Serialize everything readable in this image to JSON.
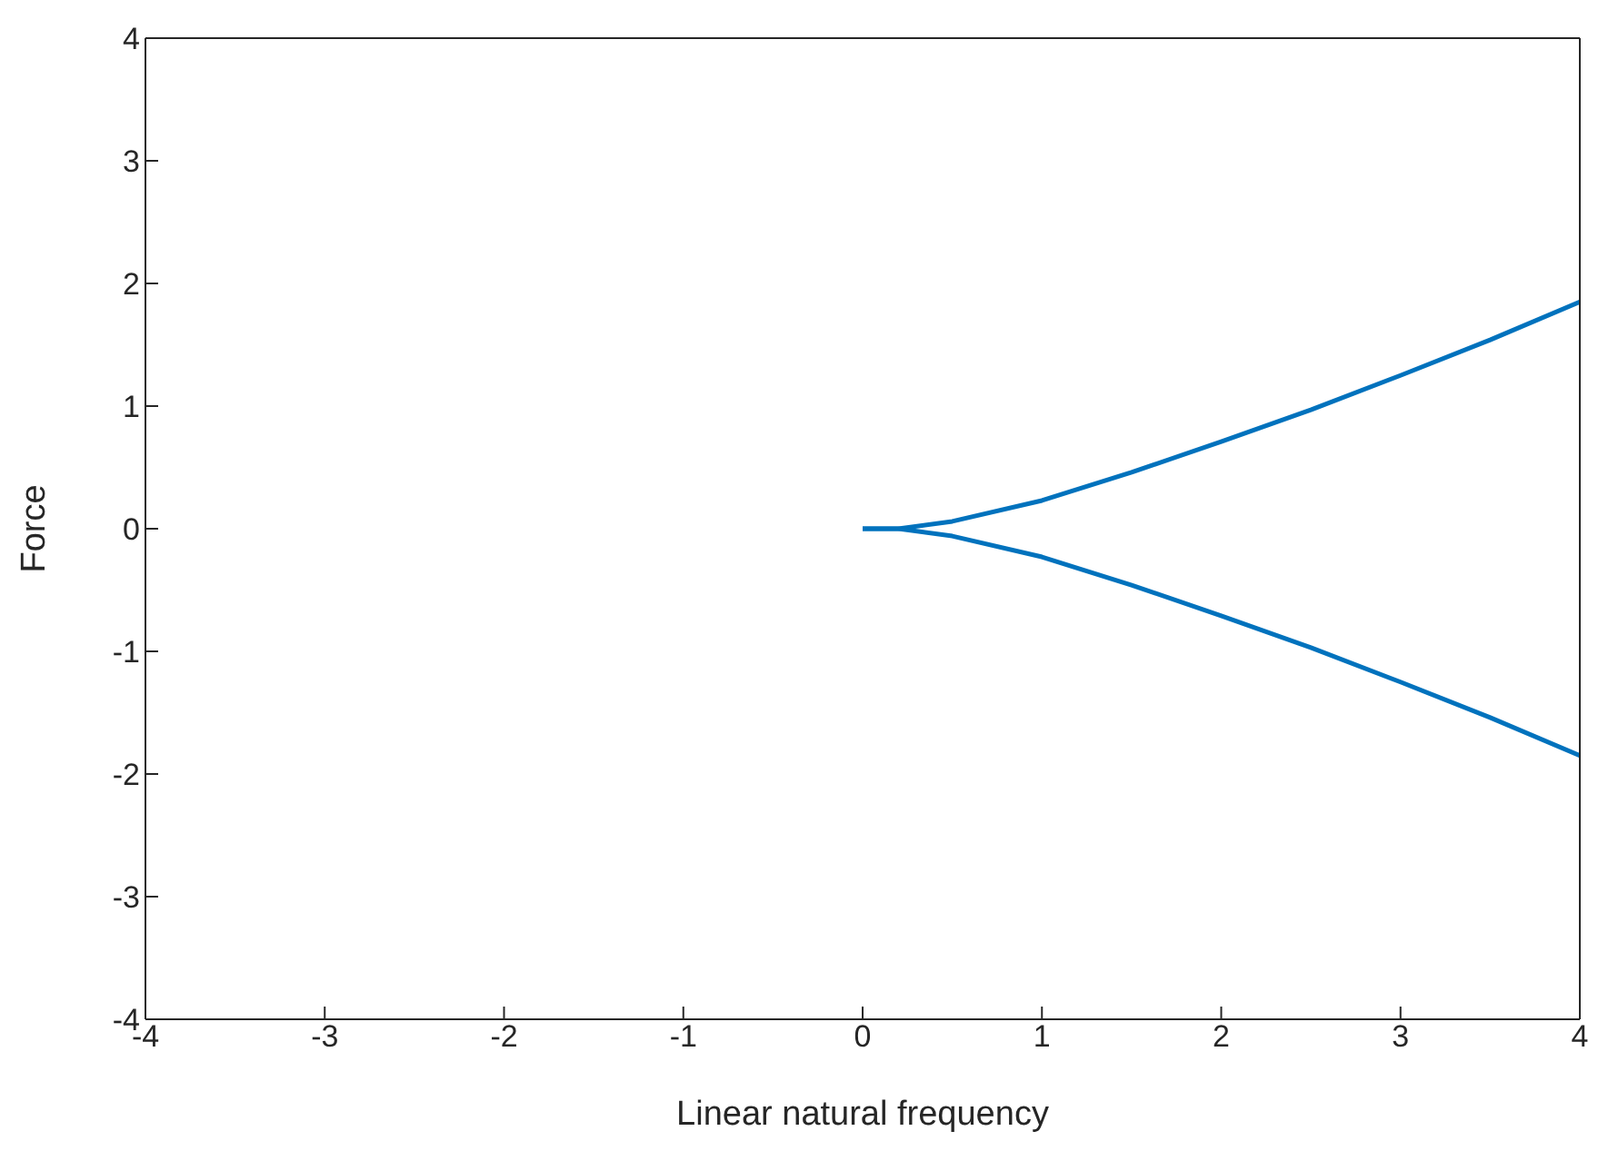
{
  "chart_data": {
    "type": "line",
    "xlabel": "Linear natural frequency",
    "ylabel": "Force",
    "xlim": [
      -4,
      4
    ],
    "ylim": [
      -4,
      4
    ],
    "xticks": [
      -4,
      -3,
      -2,
      -1,
      0,
      1,
      2,
      3,
      4
    ],
    "yticks": [
      -4,
      -3,
      -2,
      -1,
      0,
      1,
      2,
      3,
      4
    ],
    "grid": false,
    "marker": "none",
    "line_style": "solid",
    "series": [
      {
        "color": "#0072bd",
        "x": [
          0,
          0.2,
          0.5,
          1,
          1.5,
          2,
          2.5,
          3,
          3.5,
          4
        ],
        "values": [
          0,
          0,
          0.06,
          0.23,
          0.46,
          0.71,
          0.97,
          1.25,
          1.54,
          1.85
        ]
      },
      {
        "color": "#0072bd",
        "x": [
          0,
          0.2,
          0.5,
          1,
          1.5,
          2,
          2.5,
          3,
          3.5,
          4
        ],
        "values": [
          0,
          0,
          -0.06,
          -0.23,
          -0.46,
          -0.71,
          -0.97,
          -1.25,
          -1.54,
          -1.85
        ]
      }
    ]
  }
}
